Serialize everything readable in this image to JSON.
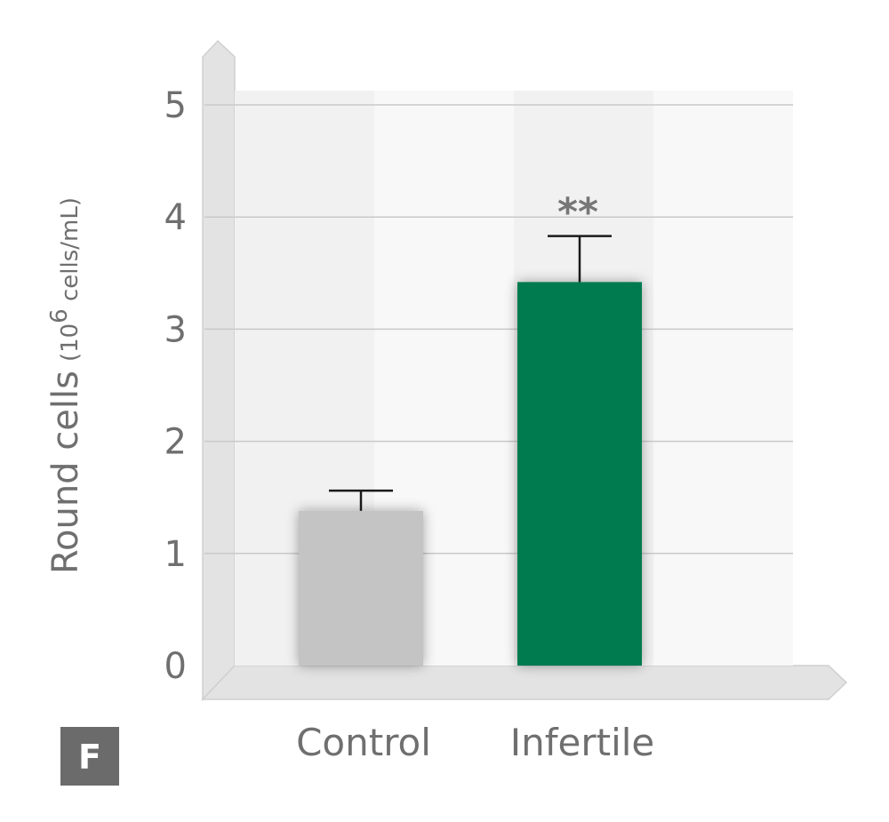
{
  "panel_label": "F",
  "chart_data": {
    "type": "bar",
    "categories": [
      "Control",
      "Infertile"
    ],
    "values": [
      1.38,
      3.42
    ],
    "errors": [
      0.18,
      0.41
    ],
    "colors": [
      "#c4c4c4",
      "#047a50"
    ],
    "ylabel_main": "Round cells",
    "ylabel_unit_base": "(10",
    "ylabel_unit_exp": "6",
    "ylabel_unit_rest": " cells/mL)",
    "ylim": [
      0,
      5
    ],
    "yticks": [
      "0",
      "1",
      "2",
      "3",
      "4",
      "5"
    ],
    "annotations": [
      {
        "category": "Infertile",
        "text": "**"
      }
    ],
    "grid": true
  }
}
